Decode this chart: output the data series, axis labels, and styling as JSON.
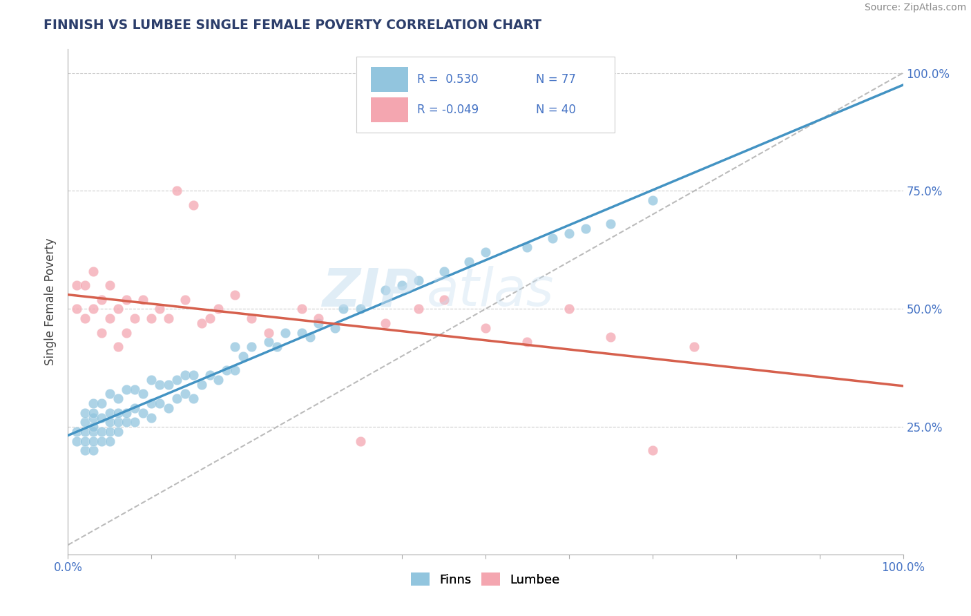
{
  "title": "FINNISH VS LUMBEE SINGLE FEMALE POVERTY CORRELATION CHART",
  "source": "Source: ZipAtlas.com",
  "ylabel": "Single Female Poverty",
  "xlim": [
    0.0,
    1.0
  ],
  "ylim": [
    0.0,
    1.0
  ],
  "y_tick_positions": [
    0.25,
    0.5,
    0.75,
    1.0
  ],
  "y_tick_labels": [
    "25.0%",
    "50.0%",
    "75.0%",
    "100.0%"
  ],
  "legend_r_finns": "R =  0.530",
  "legend_n_finns": "N = 77",
  "legend_r_lumbee": "R = -0.049",
  "legend_n_lumbee": "N = 40",
  "finns_color": "#92c5de",
  "lumbee_color": "#f4a6b0",
  "finns_line_color": "#4393c3",
  "lumbee_line_color": "#d6604d",
  "dashed_line_color": "#bbbbbb",
  "watermark_zip": "ZIP",
  "watermark_atlas": "atlas",
  "finns_x": [
    0.01,
    0.01,
    0.02,
    0.02,
    0.02,
    0.02,
    0.02,
    0.03,
    0.03,
    0.03,
    0.03,
    0.03,
    0.03,
    0.03,
    0.04,
    0.04,
    0.04,
    0.04,
    0.05,
    0.05,
    0.05,
    0.05,
    0.05,
    0.06,
    0.06,
    0.06,
    0.06,
    0.07,
    0.07,
    0.07,
    0.08,
    0.08,
    0.08,
    0.09,
    0.09,
    0.1,
    0.1,
    0.1,
    0.11,
    0.11,
    0.12,
    0.12,
    0.13,
    0.13,
    0.14,
    0.14,
    0.15,
    0.15,
    0.16,
    0.17,
    0.18,
    0.19,
    0.2,
    0.2,
    0.21,
    0.22,
    0.24,
    0.25,
    0.26,
    0.28,
    0.29,
    0.3,
    0.32,
    0.33,
    0.35,
    0.38,
    0.4,
    0.42,
    0.45,
    0.48,
    0.5,
    0.55,
    0.58,
    0.6,
    0.62,
    0.65,
    0.7
  ],
  "finns_y": [
    0.22,
    0.24,
    0.2,
    0.22,
    0.24,
    0.26,
    0.28,
    0.2,
    0.22,
    0.24,
    0.25,
    0.27,
    0.28,
    0.3,
    0.22,
    0.24,
    0.27,
    0.3,
    0.22,
    0.24,
    0.26,
    0.28,
    0.32,
    0.24,
    0.26,
    0.28,
    0.31,
    0.26,
    0.28,
    0.33,
    0.26,
    0.29,
    0.33,
    0.28,
    0.32,
    0.27,
    0.3,
    0.35,
    0.3,
    0.34,
    0.29,
    0.34,
    0.31,
    0.35,
    0.32,
    0.36,
    0.31,
    0.36,
    0.34,
    0.36,
    0.35,
    0.37,
    0.37,
    0.42,
    0.4,
    0.42,
    0.43,
    0.42,
    0.45,
    0.45,
    0.44,
    0.47,
    0.46,
    0.5,
    0.5,
    0.54,
    0.55,
    0.56,
    0.58,
    0.6,
    0.62,
    0.63,
    0.65,
    0.66,
    0.67,
    0.68,
    0.73
  ],
  "lumbee_x": [
    0.01,
    0.01,
    0.02,
    0.02,
    0.03,
    0.03,
    0.04,
    0.04,
    0.05,
    0.05,
    0.06,
    0.06,
    0.07,
    0.07,
    0.08,
    0.09,
    0.1,
    0.11,
    0.12,
    0.13,
    0.14,
    0.15,
    0.16,
    0.17,
    0.18,
    0.2,
    0.22,
    0.24,
    0.28,
    0.3,
    0.35,
    0.38,
    0.42,
    0.45,
    0.5,
    0.55,
    0.6,
    0.65,
    0.7,
    0.75
  ],
  "lumbee_y": [
    0.5,
    0.55,
    0.48,
    0.55,
    0.5,
    0.58,
    0.45,
    0.52,
    0.48,
    0.55,
    0.42,
    0.5,
    0.45,
    0.52,
    0.48,
    0.52,
    0.48,
    0.5,
    0.48,
    0.75,
    0.52,
    0.72,
    0.47,
    0.48,
    0.5,
    0.53,
    0.48,
    0.45,
    0.5,
    0.48,
    0.22,
    0.47,
    0.5,
    0.52,
    0.46,
    0.43,
    0.5,
    0.44,
    0.2,
    0.42
  ]
}
